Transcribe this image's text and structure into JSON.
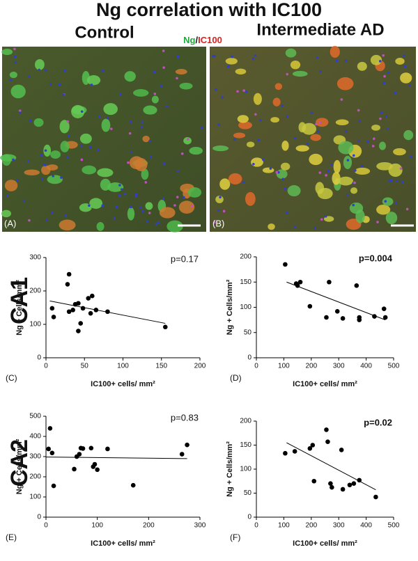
{
  "title": "Ng correlation with IC100",
  "columns": [
    "Control",
    "Intermediate AD"
  ],
  "stain": {
    "ng": "Ng",
    "sep": "/",
    "ic100": "IC100"
  },
  "image_labels": [
    "(A)",
    "(B)"
  ],
  "row_labels": [
    "CA1",
    "CA2"
  ],
  "chart_data": [
    {
      "type": "scatter",
      "panel_label": "(C)",
      "annotation": "p=0.17",
      "annotation_bold": false,
      "xlabel": "IC100+ cells/ mm²",
      "ylabel": "Ng + Cells/mm²",
      "color": "#000000",
      "x": [
        8,
        10,
        28,
        30,
        30,
        35,
        38,
        42,
        42,
        45,
        48,
        55,
        58,
        60,
        65,
        80,
        155
      ],
      "values": [
        148,
        122,
        220,
        250,
        138,
        143,
        160,
        163,
        80,
        103,
        148,
        178,
        133,
        185,
        143,
        138,
        92
      ],
      "trendline": {
        "x": [
          5,
          155
        ],
        "y": [
          170,
          103
        ]
      },
      "xlim": [
        0,
        200
      ],
      "xticks": [
        0,
        50,
        100,
        150,
        200
      ],
      "ylim": [
        0,
        300
      ],
      "yticks": [
        0,
        100,
        200,
        300
      ]
    },
    {
      "type": "scatter",
      "panel_label": "(D)",
      "annotation": "p=0.004",
      "annotation_bold": true,
      "xlabel": "IC100+ cells/ mm²",
      "ylabel": "Ng + Cells/mm²",
      "color": "#000000",
      "x": [
        105,
        145,
        150,
        160,
        195,
        255,
        265,
        295,
        315,
        365,
        375,
        375,
        430,
        465,
        470
      ],
      "values": [
        185,
        147,
        143,
        150,
        102,
        80,
        150,
        92,
        78,
        143,
        80,
        75,
        82,
        97,
        80
      ],
      "trendline": {
        "x": [
          110,
          470
        ],
        "y": [
          150,
          75
        ]
      },
      "xlim": [
        0,
        500
      ],
      "xticks": [
        0,
        100,
        200,
        300,
        400,
        500
      ],
      "ylim": [
        0,
        200
      ],
      "yticks": [
        0,
        50,
        100,
        150,
        200
      ]
    },
    {
      "type": "scatter",
      "panel_label": "(E)",
      "annotation": "p=0.83",
      "annotation_bold": false,
      "xlabel": "IC100+ cells/ mm²",
      "ylabel": "Ng + Cells/mm²",
      "color": "#000000",
      "x": [
        5,
        8,
        12,
        15,
        55,
        60,
        65,
        68,
        72,
        88,
        92,
        95,
        100,
        120,
        170,
        265,
        275
      ],
      "values": [
        338,
        440,
        318,
        155,
        238,
        300,
        312,
        342,
        340,
        342,
        250,
        262,
        235,
        338,
        158,
        312,
        358
      ],
      "trendline": {
        "x": [
          0,
          275
        ],
        "y": [
          298,
          290
        ]
      },
      "xlim": [
        0,
        300
      ],
      "xticks": [
        0,
        100,
        200,
        300
      ],
      "ylim": [
        0,
        500
      ],
      "yticks": [
        0,
        100,
        200,
        300,
        400,
        500
      ]
    },
    {
      "type": "scatter",
      "panel_label": "(F)",
      "annotation": "p=0.02",
      "annotation_bold": true,
      "xlabel": "IC100+ cells/ mm²",
      "ylabel": "Ng + Cells/mm²",
      "color": "#000000",
      "x": [
        105,
        140,
        195,
        205,
        210,
        255,
        260,
        270,
        275,
        310,
        315,
        340,
        355,
        375,
        435
      ],
      "values": [
        133,
        137,
        143,
        150,
        75,
        182,
        157,
        70,
        62,
        140,
        58,
        67,
        70,
        77,
        42
      ],
      "trendline": {
        "x": [
          110,
          435
        ],
        "y": [
          155,
          57
        ]
      },
      "xlim": [
        0,
        500
      ],
      "xticks": [
        0,
        100,
        200,
        300,
        400,
        500
      ],
      "ylim": [
        0,
        200
      ],
      "yticks": [
        0,
        50,
        100,
        150,
        200
      ]
    }
  ]
}
